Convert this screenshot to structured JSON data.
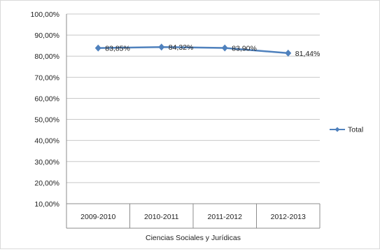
{
  "chart_data": {
    "type": "line",
    "title": "",
    "xlabel": "Ciencias Sociales y Jurídicas",
    "ylabel": "",
    "categories": [
      "2009-2010",
      "2010-2011",
      "2011-2012",
      "2012-2013"
    ],
    "y_tick_labels": [
      "10,00%",
      "20,00%",
      "30,00%",
      "40,00%",
      "50,00%",
      "60,00%",
      "70,00%",
      "80,00%",
      "90,00%",
      "100,00%"
    ],
    "ylim": [
      10,
      100
    ],
    "grid": true,
    "legend_position": "right",
    "series": [
      {
        "name": "Total",
        "values": [
          83.85,
          84.32,
          83.9,
          81.44
        ],
        "labels": [
          "83,85%",
          "84,32%",
          "83,90%",
          "81,44%"
        ],
        "color": "#4f81bd"
      }
    ]
  }
}
